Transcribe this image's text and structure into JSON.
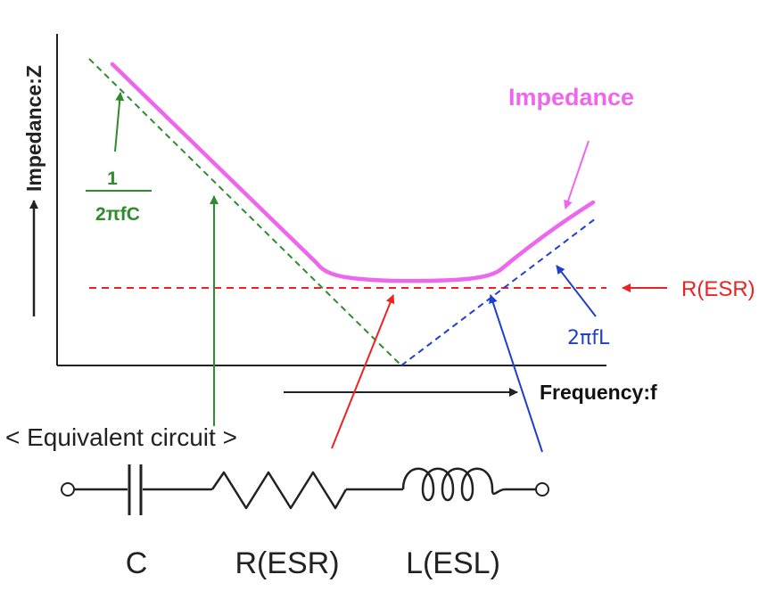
{
  "diagram": {
    "y_axis_label": "Impedance:Z",
    "x_axis_label": "Frequency:f",
    "impedance_label": "Impedance",
    "capacitive_numerator": "1",
    "capacitive_denominator": "2πfC",
    "inductive_label": "2πfL",
    "esr_label": "R(ESR)",
    "circuit_title": "< Equivalent circuit >",
    "component_c": "C",
    "component_r": "R(ESR)",
    "component_l": "L(ESL)",
    "colors": {
      "impedance": "#ee66ee",
      "capacitive": "#2e8b2e",
      "inductive": "#1f3fcf",
      "esr": "#ee2222",
      "axis": "#222222"
    }
  }
}
